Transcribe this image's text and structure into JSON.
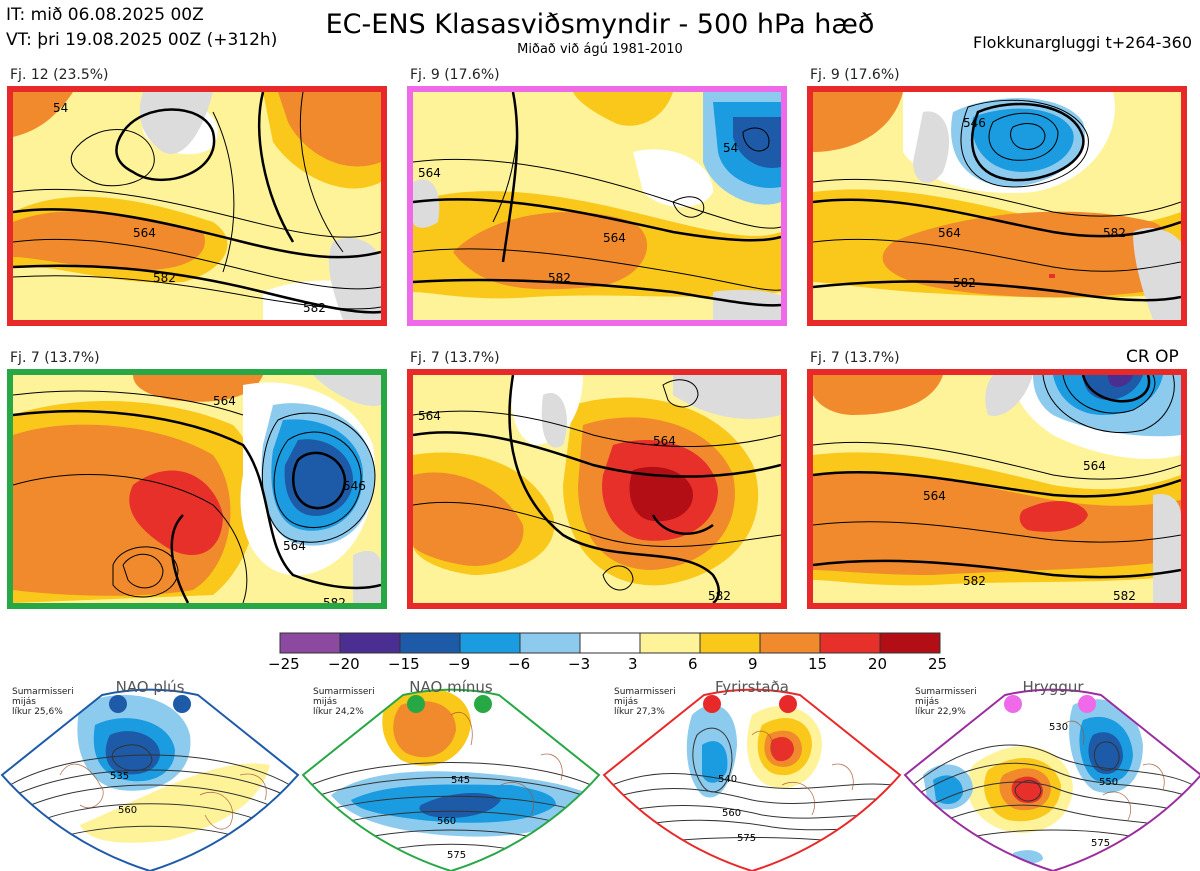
{
  "header": {
    "issue_time": "IT: mið 06.08.2025 00Z",
    "valid_time": "VT: þri 19.08.2025 00Z  (+312h)",
    "title": "EC-ENS Klasasviðsmyndir - 500 hPa hæð",
    "subtitle": "Miðað við ágú 1981-2010",
    "cluster_window": "Flokkunargluggi t+264-360"
  },
  "panels": [
    {
      "label": "Fj. 12 (23.5%)",
      "border_color": "#e8292a",
      "contour_labels": [
        "564",
        "582",
        "582",
        "54"
      ]
    },
    {
      "label": "Fj. 9 (17.6%)",
      "border_color": "#ee6ae8",
      "contour_labels": [
        "564",
        "582",
        "54",
        "564"
      ]
    },
    {
      "label": "Fj. 9 (17.6%)",
      "border_color": "#e8292a",
      "contour_labels": [
        "564",
        "582",
        "582",
        "546"
      ]
    },
    {
      "label": "Fj. 7 (13.7%)",
      "border_color": "#28a745",
      "contour_labels": [
        "564",
        "582",
        "546",
        "564"
      ]
    },
    {
      "label": "Fj. 7 (13.7%)",
      "border_color": "#e8292a",
      "contour_labels": [
        "564",
        "582",
        "564"
      ]
    },
    {
      "label": "Fj. 7 (13.7%)",
      "border_color": "#e8292a",
      "contour_labels": [
        "564",
        "564",
        "582",
        "582"
      ]
    }
  ],
  "cr_op_label": "CR OP",
  "colorbar": {
    "ticks": [
      "−25",
      "−20",
      "−15",
      "−9",
      "−6",
      "−3",
      "3",
      "6",
      "9",
      "15",
      "20",
      "25"
    ],
    "colors": [
      "#8b4a9f",
      "#4b2e91",
      "#1d5aa8",
      "#1b9be0",
      "#8ccbee",
      "#ffffff",
      "#fff39a",
      "#f9c81a",
      "#f08a2c",
      "#e8302a",
      "#b30d16"
    ]
  },
  "regimes": [
    {
      "name": "NAO plús",
      "info": [
        "Sumarmisseri",
        "mijás",
        "líkur 25,6%"
      ],
      "color": "#1d5aa8",
      "contour_labels": [
        "535",
        "560"
      ]
    },
    {
      "name": "NAO mínus",
      "info": [
        "Sumarmisseri",
        "mijás",
        "líkur 24,2%"
      ],
      "color": "#28a745",
      "contour_labels": [
        "545",
        "560",
        "575"
      ]
    },
    {
      "name": "Fyrirstaða",
      "info": [
        "Sumarmisseri",
        "mijás",
        "líkur 27,3%"
      ],
      "color": "#e8292a",
      "contour_labels": [
        "540",
        "560",
        "575"
      ]
    },
    {
      "name": "Hryggur",
      "info": [
        "Sumarmisseri",
        "mijás",
        "líkur 22,9%"
      ],
      "color": "#9b2c9f",
      "contour_labels": [
        "530",
        "550",
        "575"
      ]
    }
  ]
}
